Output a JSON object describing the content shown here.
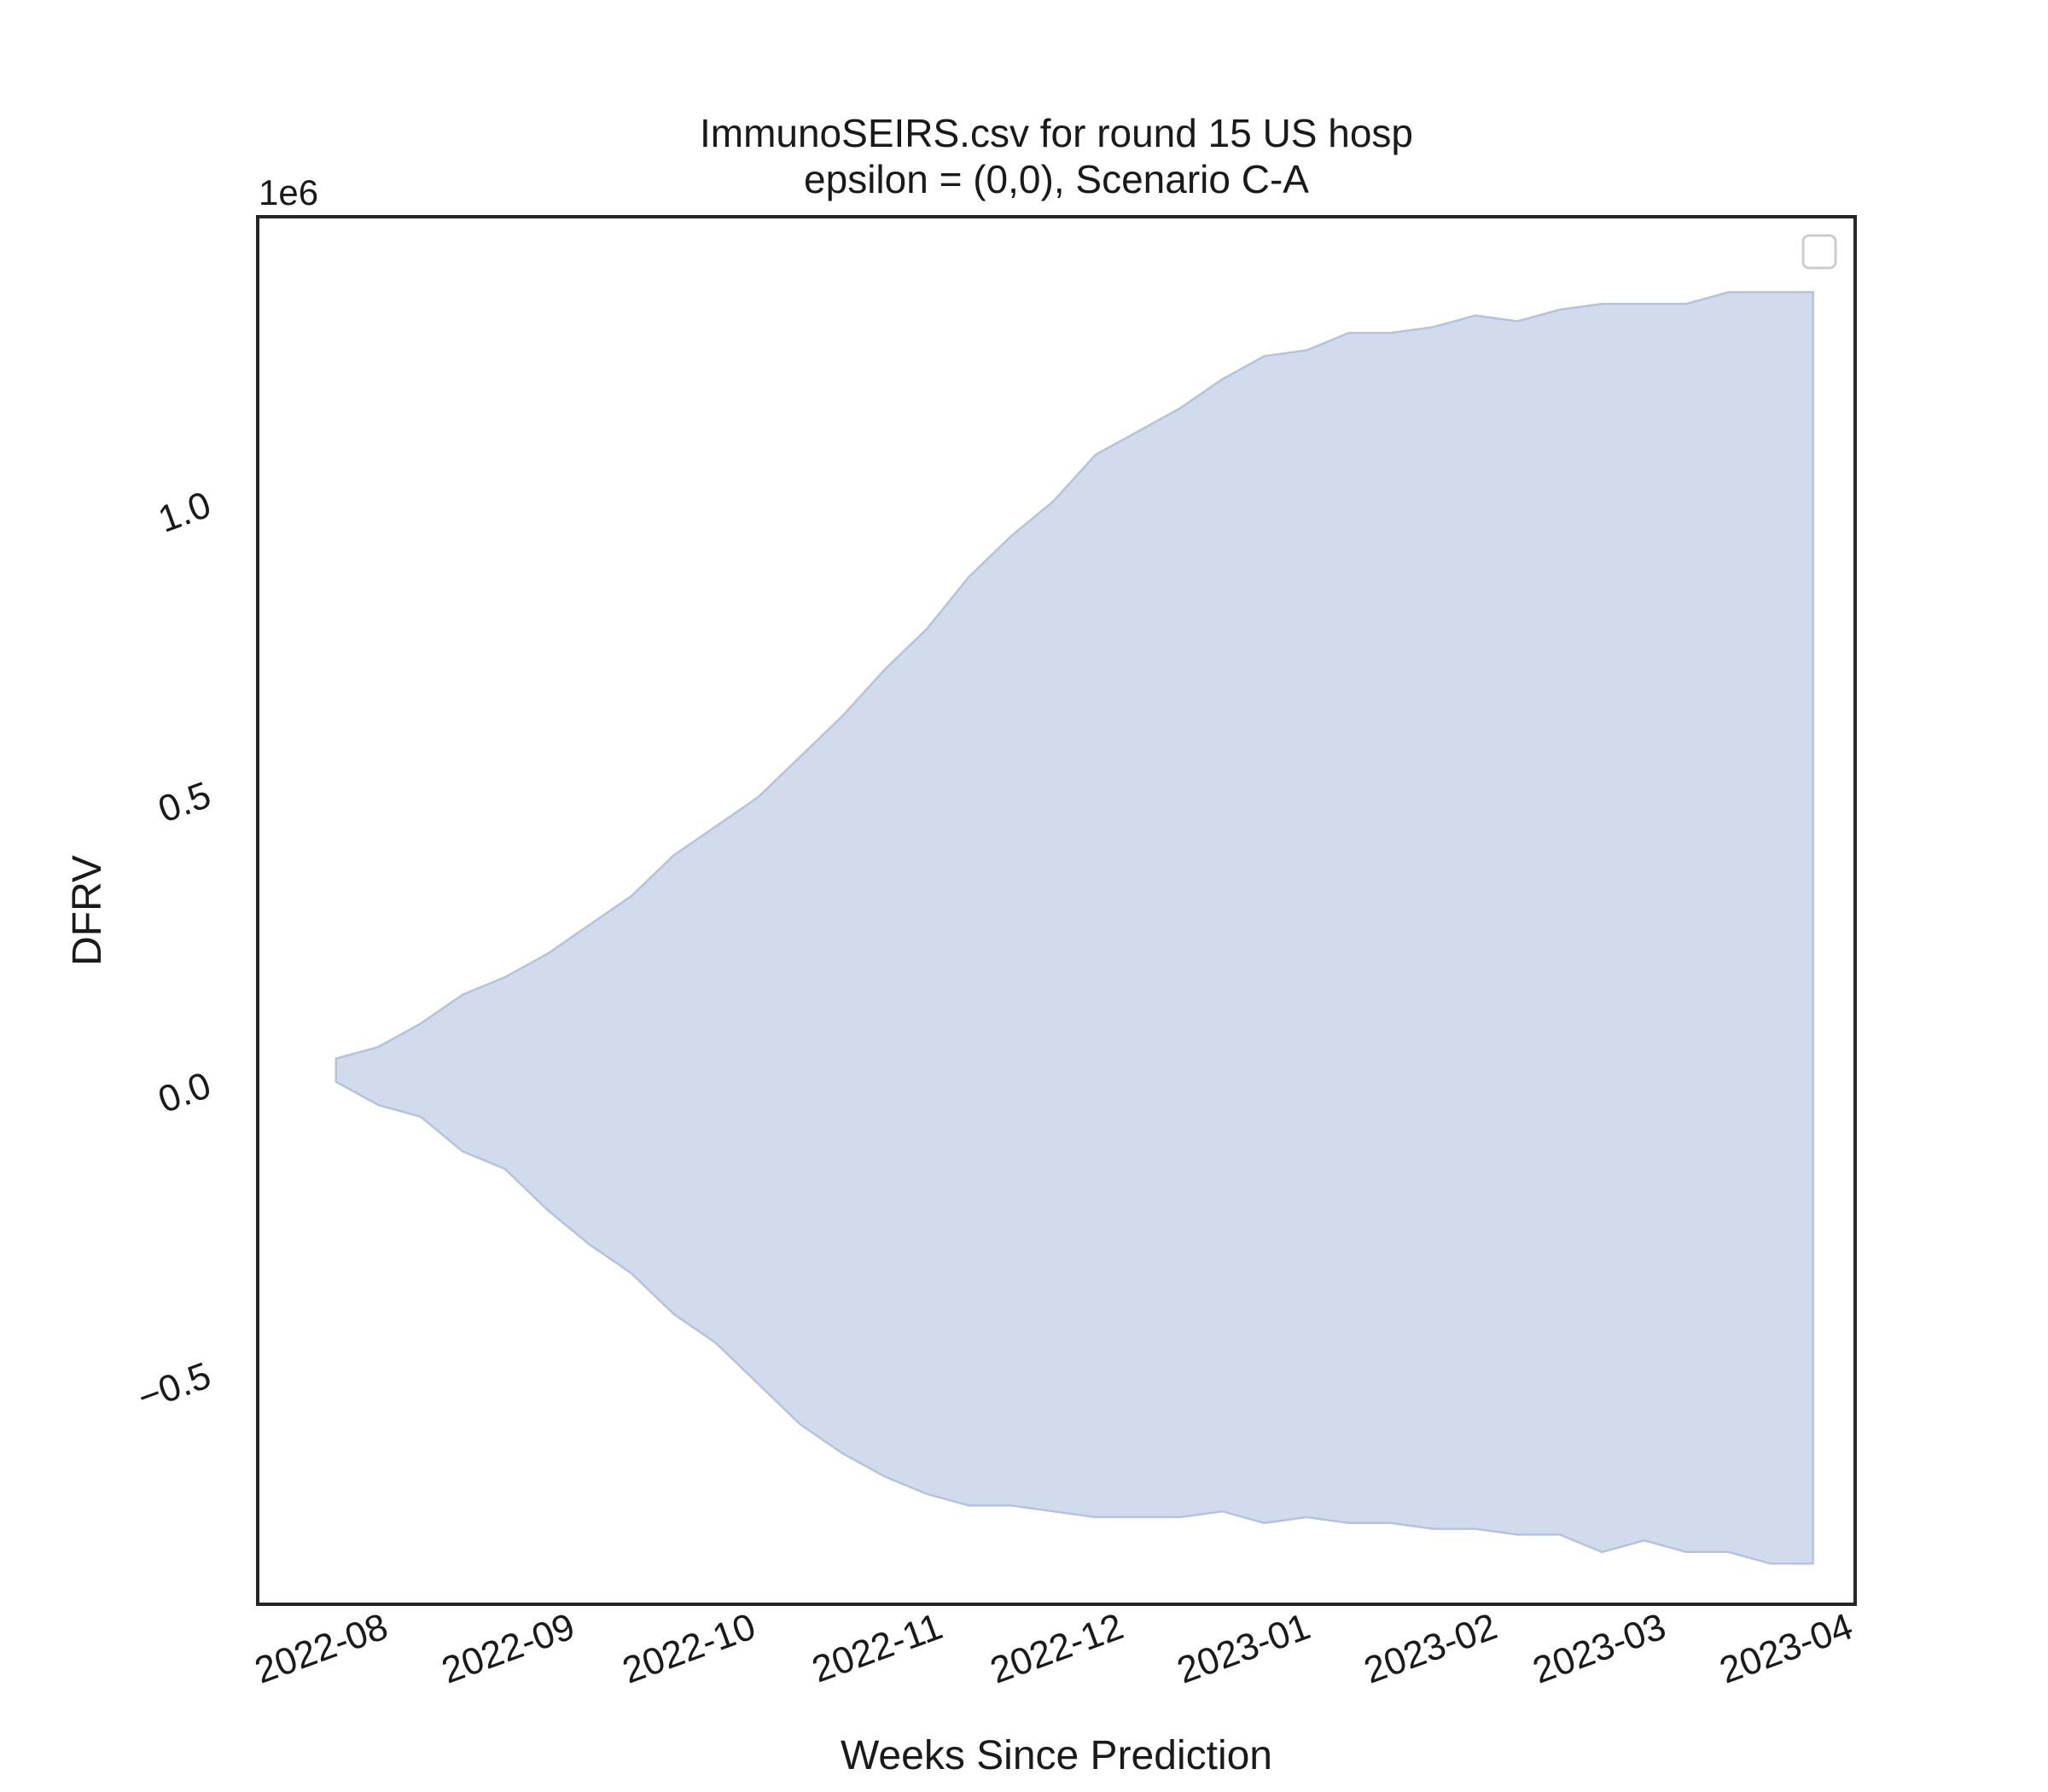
{
  "chart_data": {
    "type": "area",
    "title_line1": "ImmunoSEIRS.csv for round 15 US hosp",
    "title_line2": "epsilon = (0,0), Scenario C-A",
    "xlabel": "Weeks Since Prediction",
    "ylabel": "DFRV",
    "y_offset_label": "1e6",
    "y_unit_multiplier": 1000000,
    "xlim": [
      "2022-07-10",
      "2023-04-01"
    ],
    "ylim": [
      -0.9,
      1.49
    ],
    "x_ticks": [
      "2022-08-01",
      "2022-09-01",
      "2022-10-01",
      "2022-11-01",
      "2022-12-01",
      "2023-01-01",
      "2023-02-01",
      "2023-03-01",
      "2023-04-01"
    ],
    "x_tick_labels": [
      "2022-08",
      "2022-09",
      "2022-10",
      "2022-11",
      "2022-12",
      "2023-01",
      "2023-02",
      "2023-03",
      "2023-04"
    ],
    "y_ticks": [
      -0.5,
      0.0,
      0.5,
      1.0
    ],
    "y_tick_labels": [
      "−0.5",
      "0.0",
      "0.5",
      "1.0"
    ],
    "grid": false,
    "legend": "top-right",
    "fill_color": "#d1dbec",
    "edge_color": "#b3c3e0",
    "series": [
      {
        "x": [
          "2022-07-23",
          "2022-07-30",
          "2022-08-06",
          "2022-08-13",
          "2022-08-20",
          "2022-08-27",
          "2022-09-03",
          "2022-09-10",
          "2022-09-17",
          "2022-09-24",
          "2022-10-01",
          "2022-10-08",
          "2022-10-15",
          "2022-10-22",
          "2022-10-29",
          "2022-11-05",
          "2022-11-12",
          "2022-11-19",
          "2022-11-26",
          "2022-12-03",
          "2022-12-10",
          "2022-12-17",
          "2022-12-24",
          "2022-12-31",
          "2023-01-07",
          "2023-01-14",
          "2023-01-21",
          "2023-01-28",
          "2023-02-04",
          "2023-02-11",
          "2023-02-18",
          "2023-02-25",
          "2023-03-04",
          "2023-03-11",
          "2023-03-18",
          "2023-03-25"
        ],
        "upper": [
          0.04,
          0.06,
          0.1,
          0.15,
          0.18,
          0.22,
          0.27,
          0.32,
          0.39,
          0.44,
          0.49,
          0.56,
          0.63,
          0.71,
          0.78,
          0.87,
          0.94,
          1.0,
          1.08,
          1.12,
          1.16,
          1.21,
          1.25,
          1.26,
          1.29,
          1.29,
          1.3,
          1.32,
          1.31,
          1.33,
          1.34,
          1.34,
          1.34,
          1.36,
          1.36,
          1.36
        ],
        "lower": [
          0.0,
          -0.04,
          -0.06,
          -0.12,
          -0.15,
          -0.22,
          -0.28,
          -0.33,
          -0.4,
          -0.45,
          -0.52,
          -0.59,
          -0.64,
          -0.68,
          -0.71,
          -0.73,
          -0.73,
          -0.74,
          -0.75,
          -0.75,
          -0.75,
          -0.74,
          -0.76,
          -0.75,
          -0.76,
          -0.76,
          -0.77,
          -0.77,
          -0.78,
          -0.78,
          -0.81,
          -0.79,
          -0.81,
          -0.81,
          -0.83,
          -0.83
        ]
      }
    ]
  }
}
